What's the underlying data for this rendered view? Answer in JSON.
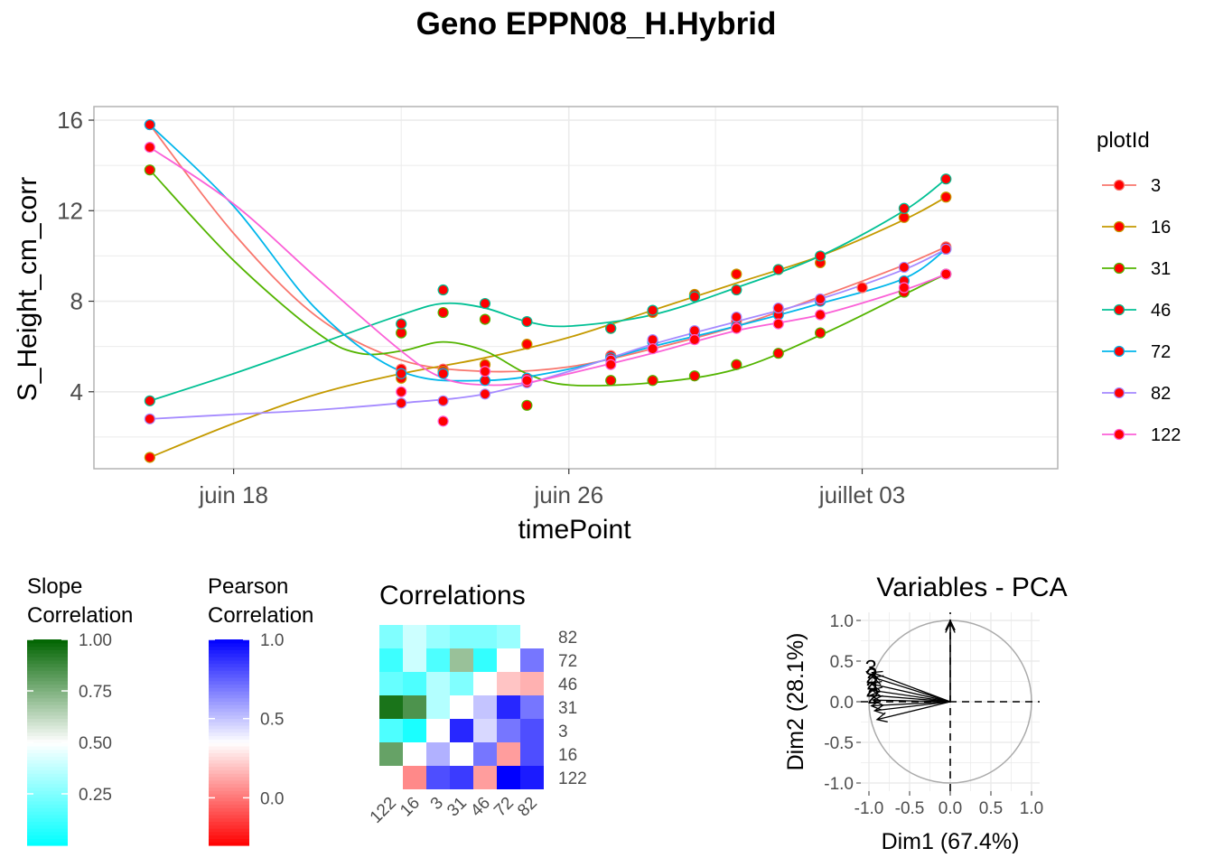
{
  "title": "Geno EPPN08_H.Hybrid",
  "colors": {
    "series": [
      "#F8766D",
      "#C49A00",
      "#53B400",
      "#00C094",
      "#00B6EB",
      "#A58AFF",
      "#FB61D7"
    ],
    "point_fill": "#ff0000",
    "grid": "#ebebeb",
    "panel_border": "#b3b3b3"
  },
  "chart_data": [
    {
      "type": "line",
      "title": "Geno EPPN08_H.Hybrid",
      "xlabel": "timePoint",
      "ylabel": "S_Height_cm_corr",
      "x_type": "date",
      "xlim": [
        "2024-06-14T16:00",
        "2024-07-07T16:00"
      ],
      "ylim": [
        0.6,
        16.6
      ],
      "x_ticks": [
        {
          "date": "2024-06-18",
          "label": "juin 18"
        },
        {
          "date": "2024-06-26",
          "label": "juin 26"
        },
        {
          "date": "2024-07-03",
          "label": "juillet 03"
        }
      ],
      "y_ticks": [
        4,
        8,
        12,
        16
      ],
      "grid": true,
      "legend_title": "plotId",
      "legend_position": "right",
      "series": [
        {
          "name": "3",
          "points": [
            [
              "2024-06-16",
              15.8
            ],
            [
              "2024-06-22",
              5.0
            ],
            [
              "2024-06-23",
              5.0
            ],
            [
              "2024-06-24",
              5.2
            ],
            [
              "2024-06-25",
              4.6
            ],
            [
              "2024-06-27",
              5.6
            ],
            [
              "2024-06-28",
              6.2
            ],
            [
              "2024-06-29",
              6.6
            ],
            [
              "2024-06-30",
              7.1
            ],
            [
              "2024-07-01",
              7.5
            ],
            [
              "2024-07-02",
              8.0
            ],
            [
              "2024-07-03",
              8.6
            ],
            [
              "2024-07-05",
              10.4
            ]
          ],
          "smooth": [
            [
              "2024-06-16",
              15.8
            ],
            [
              "2024-06-18",
              11.0
            ],
            [
              "2024-06-20",
              7.3
            ],
            [
              "2024-06-22",
              5.4
            ],
            [
              "2024-06-24",
              4.9
            ],
            [
              "2024-06-26",
              5.1
            ],
            [
              "2024-06-28",
              5.9
            ],
            [
              "2024-06-30",
              6.9
            ],
            [
              "2024-07-02",
              8.2
            ],
            [
              "2024-07-04",
              9.6
            ],
            [
              "2024-07-05",
              10.4
            ]
          ]
        },
        {
          "name": "16",
          "points": [
            [
              "2024-06-16",
              1.1
            ],
            [
              "2024-06-22",
              4.6
            ],
            [
              "2024-06-23",
              4.9
            ],
            [
              "2024-06-24",
              5.2
            ],
            [
              "2024-06-25",
              6.1
            ],
            [
              "2024-06-27",
              6.8
            ],
            [
              "2024-06-28",
              7.5
            ],
            [
              "2024-06-29",
              8.3
            ],
            [
              "2024-06-30",
              9.2
            ],
            [
              "2024-07-01",
              9.4
            ],
            [
              "2024-07-02",
              9.7
            ],
            [
              "2024-07-04",
              11.7
            ],
            [
              "2024-07-05",
              12.6
            ]
          ],
          "smooth": [
            [
              "2024-06-16",
              1.1
            ],
            [
              "2024-06-18",
              2.6
            ],
            [
              "2024-06-20",
              3.9
            ],
            [
              "2024-06-22",
              4.8
            ],
            [
              "2024-06-24",
              5.5
            ],
            [
              "2024-06-26",
              6.4
            ],
            [
              "2024-06-28",
              7.6
            ],
            [
              "2024-06-30",
              8.8
            ],
            [
              "2024-07-02",
              10.0
            ],
            [
              "2024-07-04",
              11.6
            ],
            [
              "2024-07-05",
              12.6
            ]
          ]
        },
        {
          "name": "31",
          "points": [
            [
              "2024-06-16",
              13.8
            ],
            [
              "2024-06-22",
              6.6
            ],
            [
              "2024-06-23",
              7.5
            ],
            [
              "2024-06-24",
              7.2
            ],
            [
              "2024-06-25",
              3.4
            ],
            [
              "2024-06-27",
              4.5
            ],
            [
              "2024-06-28",
              4.5
            ],
            [
              "2024-06-29",
              4.7
            ],
            [
              "2024-06-30",
              5.2
            ],
            [
              "2024-07-01",
              5.7
            ],
            [
              "2024-07-02",
              6.6
            ],
            [
              "2024-07-04",
              8.4
            ],
            [
              "2024-07-05",
              9.2
            ]
          ],
          "smooth": [
            [
              "2024-06-16",
              13.8
            ],
            [
              "2024-06-18",
              9.8
            ],
            [
              "2024-06-20",
              6.6
            ],
            [
              "2024-06-21",
              5.7
            ],
            [
              "2024-06-22",
              5.8
            ],
            [
              "2024-06-23",
              6.2
            ],
            [
              "2024-06-24",
              5.8
            ],
            [
              "2024-06-25",
              4.8
            ],
            [
              "2024-06-26",
              4.3
            ],
            [
              "2024-06-28",
              4.4
            ],
            [
              "2024-06-30",
              5.0
            ],
            [
              "2024-07-02",
              6.5
            ],
            [
              "2024-07-04",
              8.3
            ],
            [
              "2024-07-05",
              9.2
            ]
          ]
        },
        {
          "name": "46",
          "points": [
            [
              "2024-06-16",
              3.6
            ],
            [
              "2024-06-22",
              7.0
            ],
            [
              "2024-06-23",
              8.5
            ],
            [
              "2024-06-24",
              7.9
            ],
            [
              "2024-06-25",
              7.1
            ],
            [
              "2024-06-27",
              6.8
            ],
            [
              "2024-06-28",
              7.6
            ],
            [
              "2024-06-29",
              8.2
            ],
            [
              "2024-06-30",
              8.5
            ],
            [
              "2024-07-01",
              9.4
            ],
            [
              "2024-07-02",
              10.0
            ],
            [
              "2024-07-04",
              12.1
            ],
            [
              "2024-07-05",
              13.4
            ]
          ],
          "smooth": [
            [
              "2024-06-16",
              3.6
            ],
            [
              "2024-06-18",
              4.8
            ],
            [
              "2024-06-20",
              6.1
            ],
            [
              "2024-06-22",
              7.4
            ],
            [
              "2024-06-23",
              7.9
            ],
            [
              "2024-06-24",
              7.7
            ],
            [
              "2024-06-25",
              7.1
            ],
            [
              "2024-06-26",
              6.9
            ],
            [
              "2024-06-28",
              7.4
            ],
            [
              "2024-06-30",
              8.6
            ],
            [
              "2024-07-02",
              10.0
            ],
            [
              "2024-07-04",
              12.0
            ],
            [
              "2024-07-05",
              13.4
            ]
          ]
        },
        {
          "name": "72",
          "points": [
            [
              "2024-06-16",
              15.8
            ],
            [
              "2024-06-22",
              4.8
            ],
            [
              "2024-06-23",
              4.8
            ],
            [
              "2024-06-24",
              4.5
            ],
            [
              "2024-06-25",
              4.6
            ],
            [
              "2024-06-27",
              5.5
            ],
            [
              "2024-06-28",
              6.2
            ],
            [
              "2024-06-29",
              6.5
            ],
            [
              "2024-06-30",
              6.9
            ],
            [
              "2024-07-01",
              7.4
            ],
            [
              "2024-07-02",
              8.0
            ],
            [
              "2024-07-04",
              8.9
            ],
            [
              "2024-07-05",
              10.3
            ]
          ],
          "smooth": [
            [
              "2024-06-16",
              15.8
            ],
            [
              "2024-06-18",
              12.2
            ],
            [
              "2024-06-20",
              7.6
            ],
            [
              "2024-06-22",
              4.9
            ],
            [
              "2024-06-24",
              4.5
            ],
            [
              "2024-06-26",
              5.0
            ],
            [
              "2024-06-28",
              6.0
            ],
            [
              "2024-06-30",
              6.9
            ],
            [
              "2024-07-02",
              7.9
            ],
            [
              "2024-07-04",
              9.0
            ],
            [
              "2024-07-05",
              10.3
            ]
          ]
        },
        {
          "name": "82",
          "points": [
            [
              "2024-06-16",
              2.8
            ],
            [
              "2024-06-22",
              3.5
            ],
            [
              "2024-06-23",
              3.6
            ],
            [
              "2024-06-24",
              3.9
            ],
            [
              "2024-06-25",
              4.4
            ],
            [
              "2024-06-27",
              5.4
            ],
            [
              "2024-06-28",
              6.3
            ],
            [
              "2024-06-29",
              6.7
            ],
            [
              "2024-06-30",
              7.3
            ],
            [
              "2024-07-01",
              7.7
            ],
            [
              "2024-07-02",
              8.1
            ],
            [
              "2024-07-04",
              9.5
            ],
            [
              "2024-07-05",
              10.3
            ]
          ],
          "smooth": [
            [
              "2024-06-16",
              2.8
            ],
            [
              "2024-06-18",
              3.0
            ],
            [
              "2024-06-20",
              3.2
            ],
            [
              "2024-06-22",
              3.5
            ],
            [
              "2024-06-24",
              3.9
            ],
            [
              "2024-06-26",
              4.9
            ],
            [
              "2024-06-28",
              6.1
            ],
            [
              "2024-06-30",
              7.1
            ],
            [
              "2024-07-02",
              8.1
            ],
            [
              "2024-07-04",
              9.4
            ],
            [
              "2024-07-05",
              10.3
            ]
          ]
        },
        {
          "name": "122",
          "points": [
            [
              "2024-06-16",
              14.8
            ],
            [
              "2024-06-22",
              4.0
            ],
            [
              "2024-06-23",
              2.7
            ],
            [
              "2024-06-24",
              4.9
            ],
            [
              "2024-06-25",
              4.5
            ],
            [
              "2024-06-27",
              5.2
            ],
            [
              "2024-06-28",
              5.9
            ],
            [
              "2024-06-29",
              6.3
            ],
            [
              "2024-06-30",
              6.8
            ],
            [
              "2024-07-01",
              7.0
            ],
            [
              "2024-07-02",
              7.4
            ],
            [
              "2024-07-04",
              8.6
            ],
            [
              "2024-07-05",
              9.2
            ]
          ],
          "smooth": [
            [
              "2024-06-16",
              14.8
            ],
            [
              "2024-06-18",
              12.3
            ],
            [
              "2024-06-20",
              9.0
            ],
            [
              "2024-06-22",
              5.8
            ],
            [
              "2024-06-23",
              4.6
            ],
            [
              "2024-06-24",
              4.3
            ],
            [
              "2024-06-25",
              4.4
            ],
            [
              "2024-06-26",
              4.8
            ],
            [
              "2024-06-28",
              5.7
            ],
            [
              "2024-06-30",
              6.7
            ],
            [
              "2024-07-02",
              7.4
            ],
            [
              "2024-07-04",
              8.5
            ],
            [
              "2024-07-05",
              9.2
            ]
          ]
        }
      ]
    },
    {
      "type": "heatmap",
      "title": "Correlations",
      "labels": [
        "122",
        "16",
        "3",
        "31",
        "46",
        "72",
        "82"
      ],
      "row_labels_top_to_bottom": [
        "82",
        "72",
        "46",
        "31",
        "3",
        "16",
        "122"
      ],
      "upper_triangle": "slope correlation",
      "lower_triangle": "pearson correlation",
      "slope_correlation": [
        [
          null,
          0.8,
          0.15,
          0.95,
          0.2,
          0.12,
          0.25
        ],
        [
          0.8,
          null,
          0.05,
          0.85,
          0.15,
          0.4,
          0.4
        ],
        [
          0.15,
          0.05,
          null,
          0.35,
          0.35,
          0.15,
          0.3
        ],
        [
          0.95,
          0.85,
          0.35,
          null,
          0.25,
          0.7,
          0.25
        ],
        [
          0.2,
          0.15,
          0.35,
          0.25,
          null,
          0.1,
          0.25
        ],
        [
          0.12,
          0.4,
          0.15,
          0.7,
          0.1,
          null,
          0.3
        ],
        [
          0.25,
          0.4,
          0.3,
          0.25,
          0.25,
          0.3,
          null
        ]
      ],
      "pearson_correlation": [
        [
          null,
          0.05,
          0.8,
          0.85,
          0.1,
          1.0,
          0.93
        ],
        [
          0.05,
          null,
          0.55,
          0.35,
          0.7,
          0.1,
          0.8
        ],
        [
          0.8,
          0.55,
          null,
          0.9,
          0.45,
          0.7,
          0.8
        ],
        [
          0.85,
          0.35,
          0.9,
          null,
          0.5,
          0.9,
          0.7
        ],
        [
          0.1,
          0.7,
          0.45,
          0.5,
          null,
          0.2,
          0.15
        ],
        [
          1.0,
          0.1,
          0.7,
          0.9,
          0.2,
          null,
          0.7
        ],
        [
          0.93,
          0.8,
          0.8,
          0.7,
          0.15,
          0.7,
          null
        ]
      ]
    },
    {
      "type": "scatter",
      "title": "Variables - PCA",
      "xlabel": "Dim1 (67.4%)",
      "ylabel": "Dim2 (28.1%)",
      "xlim": [
        -1.1,
        1.1
      ],
      "ylim": [
        -1.1,
        1.1
      ],
      "ticks": [
        -1.0,
        -0.5,
        0.0,
        0.5,
        1.0
      ],
      "tick_labels": [
        "-1.0",
        "-0.5",
        "0.0",
        "0.5",
        "1.0"
      ],
      "grid": true,
      "arrows": [
        {
          "name": "",
          "x": 0.0,
          "y": 1.0
        },
        {
          "name": "",
          "x": 0.0,
          "y": 0.97
        },
        {
          "name": "3",
          "x": -0.96,
          "y": 0.36
        },
        {
          "name": "2",
          "x": -0.95,
          "y": 0.3
        },
        {
          "name": "",
          "x": -0.97,
          "y": 0.22
        },
        {
          "name": "",
          "x": -0.96,
          "y": 0.14
        },
        {
          "name": "",
          "x": -0.98,
          "y": 0.08
        },
        {
          "name": "",
          "x": -0.95,
          "y": 0.02
        },
        {
          "name": "",
          "x": -0.97,
          "y": -0.05
        },
        {
          "name": "",
          "x": -0.93,
          "y": -0.11
        },
        {
          "name": "",
          "x": -0.9,
          "y": -0.22
        }
      ],
      "point_labels": [
        "3",
        "2",
        "2",
        "2",
        "2"
      ]
    }
  ],
  "legends": {
    "slope": {
      "title": [
        "Slope",
        "Correlation"
      ],
      "range": [
        0.0,
        1.0
      ],
      "ticks": [
        0.25,
        0.5,
        0.75,
        1.0
      ],
      "tick_labels": [
        "0.25",
        "0.50",
        "0.75",
        "1.00"
      ],
      "colors": [
        "#00ffff",
        "#ffffff",
        "#006400"
      ]
    },
    "pearson": {
      "title": [
        "Pearson",
        "Correlation"
      ],
      "range": [
        -0.3,
        1.0
      ],
      "ticks": [
        0.0,
        0.5,
        1.0
      ],
      "tick_labels": [
        "0.0",
        "0.5",
        "1.0"
      ],
      "colors": [
        "#ff0000",
        "#ffffff",
        "#0000ff"
      ]
    }
  }
}
